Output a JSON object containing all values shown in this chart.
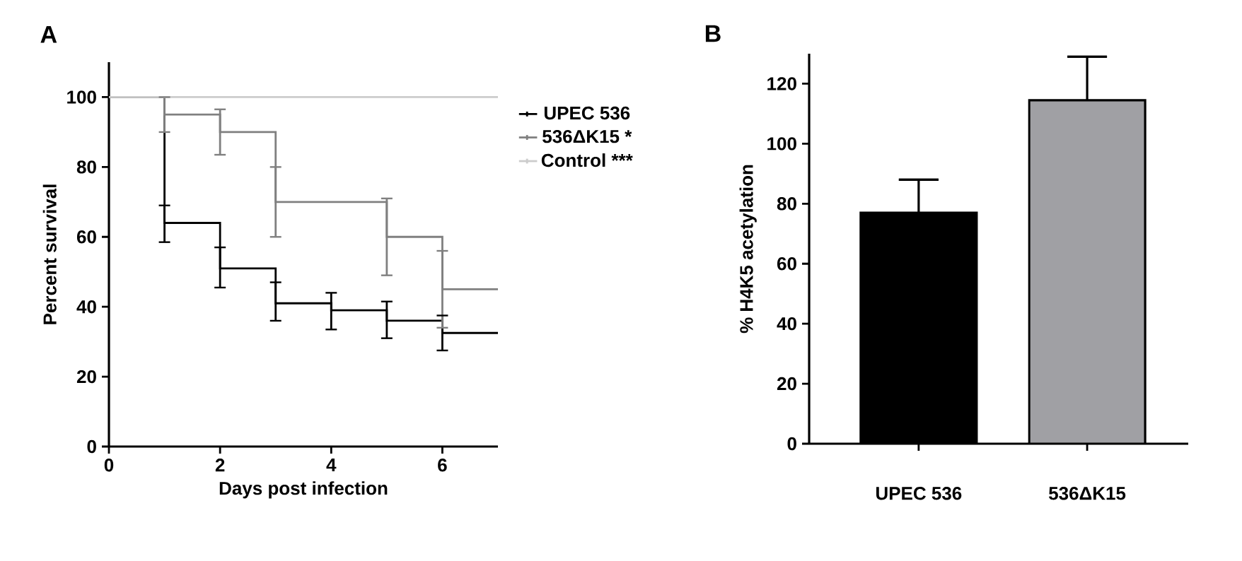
{
  "chart_data": [
    {
      "type": "step",
      "title": "A",
      "xlabel": "Days post infection",
      "ylabel": "Percent survival",
      "xlim": [
        0,
        7
      ],
      "ylim": [
        0,
        110
      ],
      "xticks": [
        0,
        2,
        4,
        6
      ],
      "yticks": [
        0,
        20,
        40,
        60,
        80,
        100
      ],
      "legend": "right",
      "series": [
        {
          "name": "UPEC 536",
          "color": "#000000",
          "x": [
            0,
            1,
            2,
            3,
            4,
            5,
            6,
            7
          ],
          "values": [
            100,
            64,
            51,
            41,
            39,
            36,
            32.5,
            32.5
          ],
          "errors": [
            null,
            [
              58.5,
              69
            ],
            [
              45.5,
              57
            ],
            [
              36,
              47
            ],
            [
              33.5,
              44
            ],
            [
              31,
              41.5
            ],
            [
              27.5,
              37.5
            ],
            null
          ]
        },
        {
          "name": "536ΔK15 *",
          "color": "#808080",
          "x": [
            0,
            1,
            2,
            3,
            5,
            6,
            7
          ],
          "values": [
            100,
            95,
            90,
            70,
            60,
            45,
            45
          ],
          "errors": [
            null,
            [
              90,
              100
            ],
            [
              83.5,
              96.5
            ],
            [
              60,
              80
            ],
            [
              49,
              71
            ],
            [
              34,
              56
            ],
            null
          ]
        },
        {
          "name": "Control ***",
          "color": "#cccccc",
          "x": [
            0,
            7
          ],
          "values": [
            100,
            100
          ]
        }
      ]
    },
    {
      "type": "bar",
      "title": "B",
      "ylabel": "% H4K5 acetylation",
      "categories": [
        "UPEC 536",
        "536ΔK15"
      ],
      "values": [
        77,
        114.5
      ],
      "colors": [
        "#000000",
        "#a0a0a4"
      ],
      "errors": [
        [
          77,
          88
        ],
        [
          114.5,
          129
        ]
      ],
      "ylim": [
        0,
        130
      ],
      "yticks": [
        0,
        20,
        40,
        60,
        80,
        100,
        120
      ]
    }
  ]
}
